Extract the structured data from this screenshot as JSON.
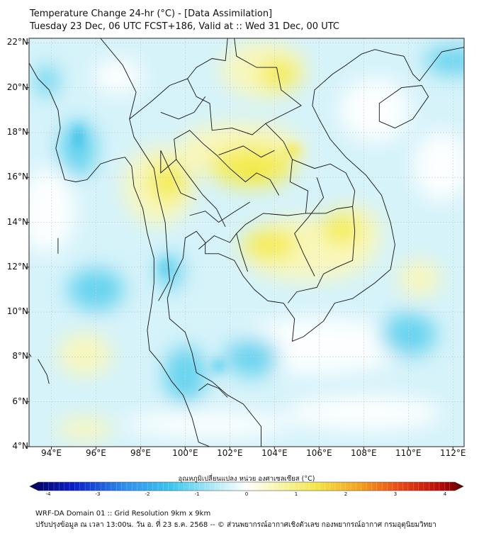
{
  "title": {
    "line1": "Temperature Change 24-hr (°C) - [Data Assimilation]",
    "line2": "Tuesday 23 Dec, 06 UTC FCST+186, Valid at :: Wed 31 Dec, 00 UTC"
  },
  "axes": {
    "lat_labels": [
      "22°N",
      "20°N",
      "18°N",
      "16°N",
      "14°N",
      "12°N",
      "10°N",
      "8°N",
      "6°N",
      "4°N"
    ],
    "lon_labels": [
      "94°E",
      "96°E",
      "98°E",
      "100°E",
      "102°E",
      "104°E",
      "106°E",
      "108°E",
      "110°E",
      "112°E"
    ],
    "lon_range": [
      93,
      112.5
    ],
    "lat_range": [
      4,
      22.2
    ]
  },
  "colorbar": {
    "title": "อุณหภูมิเปลี่ยนแปลง หน่วย องศาเซลเซียส (°C)",
    "ticks": [
      "-4",
      "-3",
      "-2",
      "-1",
      "0",
      "1",
      "2",
      "3",
      "4"
    ],
    "range": [
      -4,
      4
    ]
  },
  "footer": {
    "line1": "WRF-DA Domain 01 :: Grid Resolution 9km x 9km",
    "line2": "ปรับปรุงข้อมูล ณ เวลา 13:00น. วัน อ. ที่ 23 ธ.ค. 2568 -- © ส่วนพยากรณ์อากาศเชิงตัวเลข กองพยากรณ์อากาศ กรมอุตุนิยมวิทยา"
  },
  "colors": {
    "cold_light": "#d6f3fa",
    "cold": "#5fd0ee",
    "neutral": "#ffffff",
    "warm_light": "#fbf7b8",
    "warm": "#f4ec4e",
    "coast": "#111111",
    "grid": "#cccccc"
  }
}
